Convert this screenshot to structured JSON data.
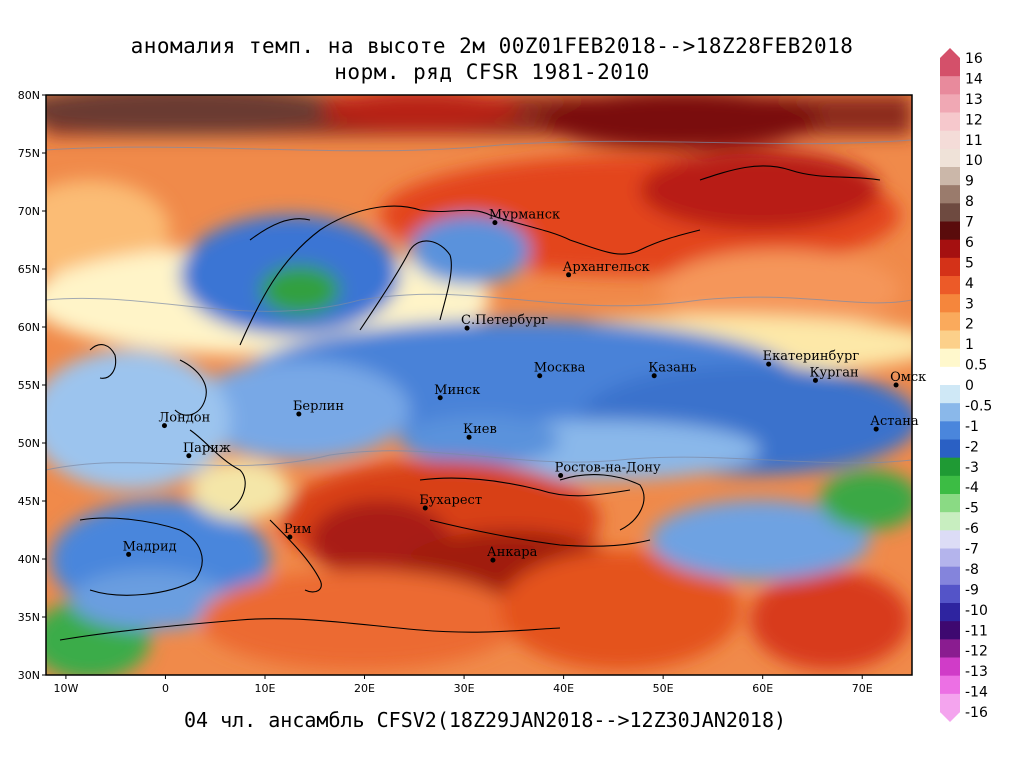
{
  "title_line1": "аномалия темп. на высоте 2м 00Z01FEB2018-->18Z28FEB2018",
  "title_line2": "норм. ряд CFSR 1981-2010",
  "footer": "04 чл. ансамбль CFSV2(18Z29JAN2018-->12Z30JAN2018)",
  "map": {
    "lat_range": [
      30,
      80
    ],
    "lon_range": [
      -12,
      75
    ],
    "lat_labels": [
      "80N",
      "75N",
      "70N",
      "65N",
      "60N",
      "55N",
      "50N",
      "45N",
      "40N",
      "35N",
      "30N"
    ],
    "lat_values": [
      80,
      75,
      70,
      65,
      60,
      55,
      50,
      45,
      40,
      35,
      30
    ],
    "lon_labels": [
      "10W",
      "0",
      "10E",
      "20E",
      "30E",
      "40E",
      "50E",
      "60E",
      "70E"
    ],
    "lon_values": [
      -10,
      0,
      10,
      20,
      30,
      40,
      50,
      60,
      70
    ],
    "cities": [
      {
        "name": "Мурманск",
        "lon": 33.1,
        "lat": 69.0
      },
      {
        "name": "Архангельск",
        "lon": 40.5,
        "lat": 64.5
      },
      {
        "name": "С.Петербург",
        "lon": 30.3,
        "lat": 59.9
      },
      {
        "name": "Москва",
        "lon": 37.6,
        "lat": 55.8
      },
      {
        "name": "Казань",
        "lon": 49.1,
        "lat": 55.8
      },
      {
        "name": "Екатеринбург",
        "lon": 60.6,
        "lat": 56.8
      },
      {
        "name": "Курган",
        "lon": 65.3,
        "lat": 55.4
      },
      {
        "name": "Омск",
        "lon": 73.4,
        "lat": 55.0
      },
      {
        "name": "Минск",
        "lon": 27.6,
        "lat": 53.9
      },
      {
        "name": "Берлин",
        "lon": 13.4,
        "lat": 52.5
      },
      {
        "name": "Лондон",
        "lon": -0.1,
        "lat": 51.5
      },
      {
        "name": "Киев",
        "lon": 30.5,
        "lat": 50.5
      },
      {
        "name": "Астана",
        "lon": 71.4,
        "lat": 51.2
      },
      {
        "name": "Париж",
        "lon": 2.35,
        "lat": 48.9
      },
      {
        "name": "Ростов-на-Дону",
        "lon": 39.7,
        "lat": 47.2
      },
      {
        "name": "Бухарест",
        "lon": 26.1,
        "lat": 44.4
      },
      {
        "name": "Рим",
        "lon": 12.5,
        "lat": 41.9
      },
      {
        "name": "Мадрид",
        "lon": -3.7,
        "lat": 40.4
      },
      {
        "name": "Анкара",
        "lon": 32.9,
        "lat": 39.9
      }
    ]
  },
  "colorbar": {
    "labels": [
      "16",
      "14",
      "13",
      "12",
      "11",
      "10",
      "9",
      "8",
      "7",
      "6",
      "5",
      "4",
      "3",
      "2",
      "1",
      "0.5",
      "0",
      "-0.5",
      "-1",
      "-2",
      "-3",
      "-4",
      "-5",
      "-6",
      "-7",
      "-8",
      "-9",
      "-10",
      "-11",
      "-12",
      "-13",
      "-14",
      "-16"
    ],
    "colors": [
      "#d4506a",
      "#e88a9c",
      "#f0a8b4",
      "#f6c8cc",
      "#f4dcd8",
      "#efe2d8",
      "#cbb7a9",
      "#9a7b6c",
      "#6e4a40",
      "#5a0c0c",
      "#a51010",
      "#d43218",
      "#ec5a28",
      "#f5863c",
      "#faaa5c",
      "#fcd08a",
      "#fff8cc",
      "#ffffff",
      "#cfe8f6",
      "#8ab8ea",
      "#4a86dc",
      "#2a60c4",
      "#1f9a34",
      "#3cbc44",
      "#8ada84",
      "#c8eec0",
      "#dcdcf6",
      "#b4b4ec",
      "#8484dc",
      "#5454c8",
      "#2e24a0",
      "#3e0870",
      "#8a1c90",
      "#d03cc8",
      "#ec70e4",
      "#f4a4ee"
    ],
    "top_color": "#d4506a",
    "bottom_color": "#f4a4ee"
  }
}
